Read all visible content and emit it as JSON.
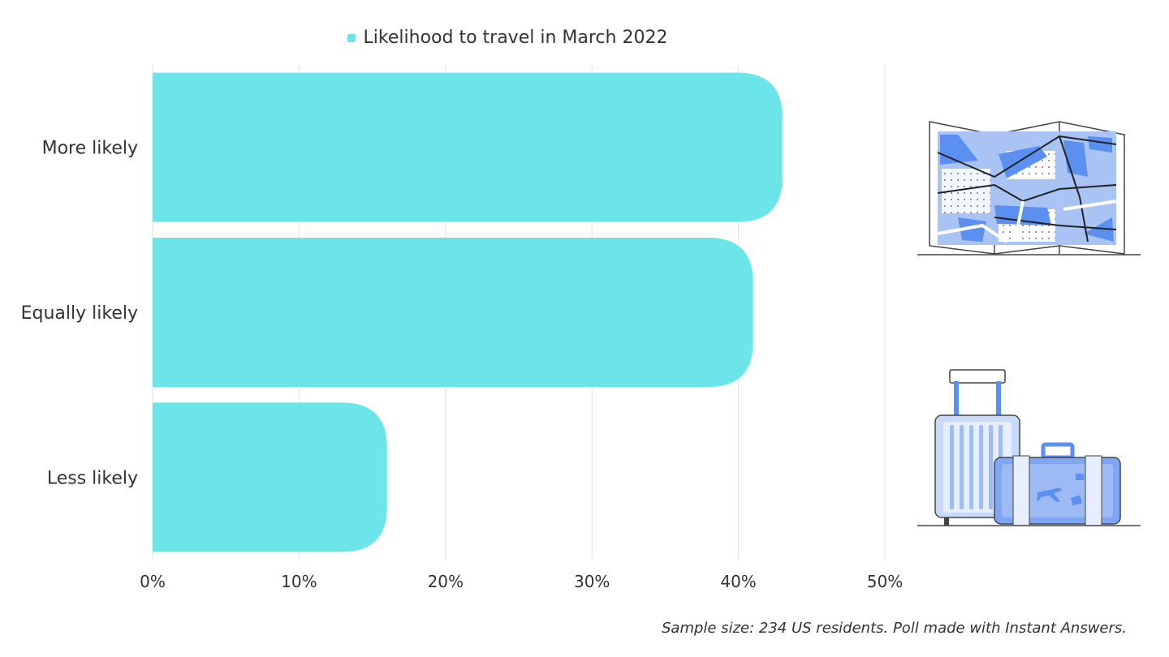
{
  "chart_data": {
    "type": "bar",
    "orientation": "horizontal",
    "categories": [
      "More likely",
      "Equally likely",
      "Less likely"
    ],
    "series": [
      {
        "name": "Likelihood to travel in March 2022",
        "values": [
          43,
          41,
          16
        ]
      }
    ],
    "xlim": [
      0,
      50
    ],
    "x_ticks": [
      0,
      10,
      20,
      30,
      40,
      50
    ],
    "x_tick_labels": [
      "0%",
      "10%",
      "20%",
      "30%",
      "40%",
      "50%"
    ],
    "grid": true,
    "legend_position": "top",
    "bar_color": "#6BE5E8",
    "grid_color": "#E2E2E2"
  },
  "footnote": "Sample size: 234 US residents. Poll made with Instant Answers.",
  "illustrations": [
    "map-icon",
    "luggage-icon"
  ]
}
